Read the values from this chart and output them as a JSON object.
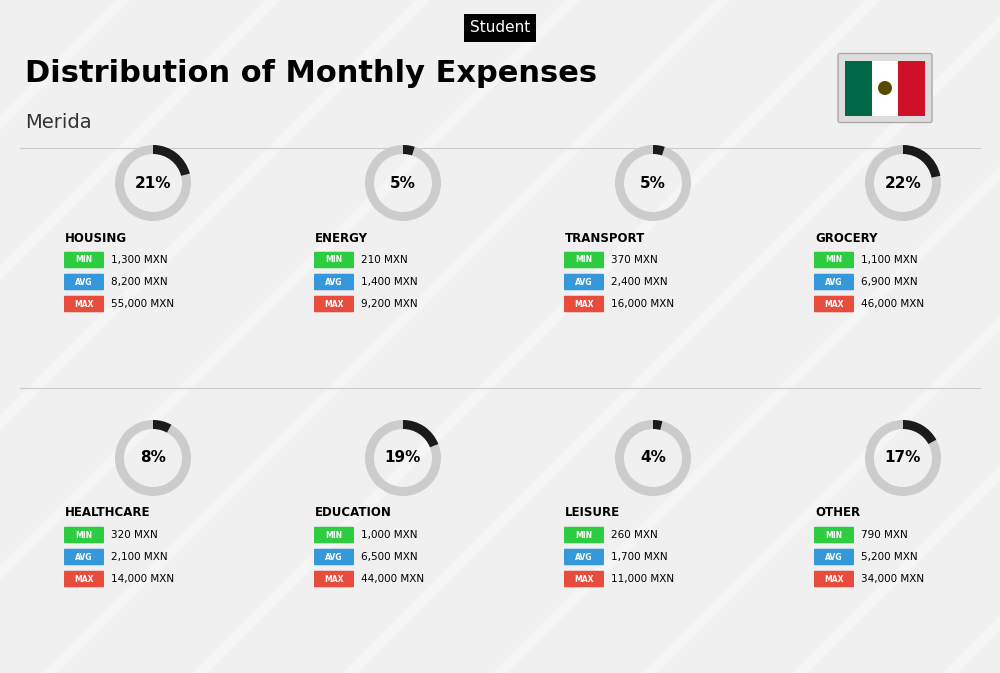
{
  "title": "Distribution of Monthly Expenses",
  "subtitle": "Student",
  "location": "Merida",
  "background_color": "#f0f0f0",
  "categories": [
    {
      "name": "HOUSING",
      "percent": 21,
      "min_val": "1,300 MXN",
      "avg_val": "8,200 MXN",
      "max_val": "55,000 MXN",
      "row": 0,
      "col": 0
    },
    {
      "name": "ENERGY",
      "percent": 5,
      "min_val": "210 MXN",
      "avg_val": "1,400 MXN",
      "max_val": "9,200 MXN",
      "row": 0,
      "col": 1
    },
    {
      "name": "TRANSPORT",
      "percent": 5,
      "min_val": "370 MXN",
      "avg_val": "2,400 MXN",
      "max_val": "16,000 MXN",
      "row": 0,
      "col": 2
    },
    {
      "name": "GROCERY",
      "percent": 22,
      "min_val": "1,100 MXN",
      "avg_val": "6,900 MXN",
      "max_val": "46,000 MXN",
      "row": 0,
      "col": 3
    },
    {
      "name": "HEALTHCARE",
      "percent": 8,
      "min_val": "320 MXN",
      "avg_val": "2,100 MXN",
      "max_val": "14,000 MXN",
      "row": 1,
      "col": 0
    },
    {
      "name": "EDUCATION",
      "percent": 19,
      "min_val": "1,000 MXN",
      "avg_val": "6,500 MXN",
      "max_val": "44,000 MXN",
      "row": 1,
      "col": 1
    },
    {
      "name": "LEISURE",
      "percent": 4,
      "min_val": "260 MXN",
      "avg_val": "1,700 MXN",
      "max_val": "11,000 MXN",
      "row": 1,
      "col": 2
    },
    {
      "name": "OTHER",
      "percent": 17,
      "min_val": "790 MXN",
      "avg_val": "5,200 MXN",
      "max_val": "34,000 MXN",
      "row": 1,
      "col": 3
    }
  ],
  "color_min": "#2ecc40",
  "color_avg": "#3498db",
  "color_max": "#e74c3c",
  "donut_active_color": "#1a1a1a",
  "donut_inactive_color": "#cccccc",
  "label_color_min": "#ffffff",
  "label_color_avg": "#ffffff",
  "label_color_max": "#ffffff"
}
